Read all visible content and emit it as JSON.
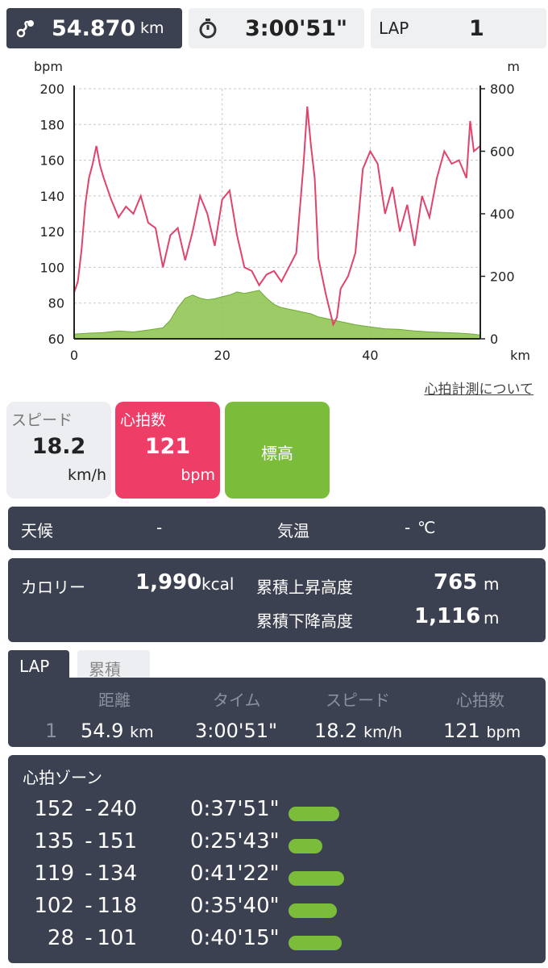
{
  "top": {
    "distance": "54.870",
    "distance_unit": "km",
    "time": "3:00'51\"",
    "lap_label": "LAP",
    "lap_value": "1",
    "distance_icon": "route-icon",
    "time_icon": "stopwatch-icon"
  },
  "chart_data": {
    "type": "line",
    "ylabel_left": "bpm",
    "ylabel_right": "m",
    "xlabel": "km",
    "xlim": [
      0,
      54.87
    ],
    "ylim_left": [
      60,
      200
    ],
    "ylim_right": [
      0,
      800
    ],
    "x_ticks": [
      "0",
      "20",
      "40"
    ],
    "y_ticks_left": [
      "200",
      "180",
      "160",
      "140",
      "120",
      "100",
      "80",
      "60"
    ],
    "y_ticks_right": [
      "800",
      "600",
      "400",
      "200",
      "0"
    ],
    "grid": true,
    "series": [
      {
        "name": "",
        "axis": "left",
        "color": "#e0436b",
        "x": [
          0,
          0.5,
          1,
          1.5,
          2,
          2.5,
          3,
          3.5,
          4,
          5,
          6,
          7,
          8,
          9,
          10,
          11,
          12,
          13,
          14,
          15,
          16,
          17,
          18,
          19,
          20,
          21,
          22,
          23,
          24,
          25,
          26,
          27,
          28,
          29,
          30,
          31,
          31.5,
          32,
          32.5,
          33,
          34,
          35,
          35.5,
          36,
          37,
          38,
          39,
          40,
          41,
          42,
          43,
          44,
          45,
          46,
          47,
          48,
          49,
          50,
          51,
          52,
          53,
          53.5,
          54,
          54.87
        ],
        "y": [
          86,
          92,
          110,
          135,
          150,
          158,
          168,
          157,
          150,
          138,
          128,
          134,
          130,
          140,
          125,
          122,
          100,
          118,
          122,
          104,
          120,
          140,
          130,
          112,
          138,
          143,
          118,
          100,
          98,
          90,
          96,
          98,
          92,
          100,
          108,
          158,
          190,
          168,
          150,
          105,
          85,
          68,
          72,
          88,
          95,
          108,
          155,
          165,
          158,
          130,
          145,
          120,
          135,
          112,
          140,
          128,
          150,
          165,
          158,
          160,
          150,
          182,
          165,
          168
        ]
      },
      {
        "name": "",
        "axis": "right",
        "color": "#8cc34b",
        "x": [
          0,
          2,
          4,
          6,
          8,
          10,
          12,
          13,
          14,
          15,
          16,
          17,
          18,
          19,
          20,
          21,
          22,
          23,
          24,
          25,
          26,
          27,
          28,
          29,
          30,
          31,
          32,
          33,
          34,
          35,
          36,
          37,
          38,
          40,
          42,
          44,
          46,
          48,
          50,
          52,
          54,
          54.87
        ],
        "y": [
          15,
          18,
          20,
          25,
          22,
          28,
          35,
          60,
          100,
          130,
          140,
          130,
          125,
          128,
          135,
          140,
          150,
          145,
          150,
          155,
          130,
          110,
          100,
          95,
          90,
          85,
          80,
          70,
          65,
          60,
          55,
          50,
          45,
          38,
          32,
          30,
          25,
          22,
          20,
          18,
          15,
          12
        ]
      }
    ]
  },
  "hr_link": "心拍計測について",
  "tiles": {
    "speed_label": "スピード",
    "speed_value": "18.2",
    "speed_unit": "km/h",
    "hr_label": "心拍数",
    "hr_value": "121",
    "hr_unit": "bpm",
    "alt_label": "標高"
  },
  "weather": {
    "weather_label": "天候",
    "weather_value": "-",
    "temp_label": "気温",
    "temp_value": "-",
    "temp_unit": "℃"
  },
  "totals": {
    "cal_label": "カロリー",
    "cal_value": "1,990",
    "cal_unit": "kcal",
    "ascent_label": "累積上昇高度",
    "ascent_value": "765",
    "ascent_unit": "m",
    "descent_label": "累積下降高度",
    "descent_value": "1,116",
    "descent_unit": "m"
  },
  "tabs": {
    "lap": "LAP",
    "total": "累積"
  },
  "lap_table": {
    "headers": {
      "distance": "距離",
      "time": "タイム",
      "speed": "スピード",
      "hr": "心拍数"
    },
    "row": {
      "num": "1",
      "distance": "54.9",
      "distance_unit": "km",
      "time": "3:00'51\"",
      "speed": "18.2",
      "speed_unit": "km/h",
      "hr": "121",
      "hr_unit": "bpm"
    }
  },
  "zones": {
    "title": "心拍ゾーン",
    "items": [
      {
        "low": "152",
        "sep": "-",
        "high": "240",
        "time": "0:37'51\"",
        "share": 0.21
      },
      {
        "low": "135",
        "sep": "-",
        "high": "151",
        "time": "0:25'43\"",
        "share": 0.14
      },
      {
        "low": "119",
        "sep": "-",
        "high": "134",
        "time": "0:41'22\"",
        "share": 0.23
      },
      {
        "low": "102",
        "sep": "-",
        "high": "118",
        "time": "0:35'40\"",
        "share": 0.2
      },
      {
        "low": "28",
        "sep": "-",
        "high": "101",
        "time": "0:40'15\"",
        "share": 0.22
      }
    ]
  }
}
